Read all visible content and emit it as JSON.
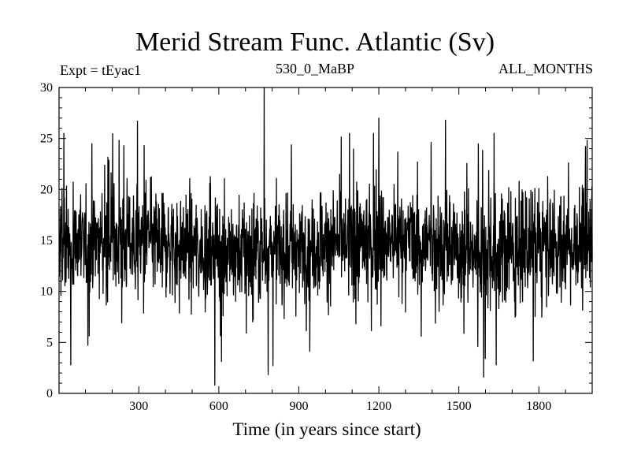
{
  "chart_data": {
    "type": "line",
    "title": "Merid Stream Func. Atlantic (Sv)",
    "header_left": "Expt = tEyac1",
    "header_center": "530_0_MaBP",
    "header_right": "ALL_MONTHS",
    "xlabel": "Time (in years since start)",
    "ylabel": "",
    "xlim": [
      1,
      2000
    ],
    "ylim": [
      0,
      30
    ],
    "xticks": [
      300,
      600,
      900,
      1200,
      1500,
      1800
    ],
    "yticks": [
      0,
      5,
      10,
      15,
      20,
      25,
      30
    ],
    "grid": false,
    "series_summary": {
      "n_points": 2000,
      "mean": 14.5,
      "typical_range": [
        8,
        21
      ],
      "noted_extremes": [
        {
          "x": 585,
          "y": 0.8
        },
        {
          "x": 45,
          "y": 2.8
        },
        {
          "x": 770,
          "y": 30.0
        },
        {
          "x": 1640,
          "y": 2.8
        },
        {
          "x": 1200,
          "y": 27.0
        },
        {
          "x": 1450,
          "y": 26.8
        },
        {
          "x": 295,
          "y": 26.7
        }
      ]
    },
    "colors": {
      "line": "#000000",
      "axes": "#000000",
      "background": "#ffffff"
    }
  }
}
